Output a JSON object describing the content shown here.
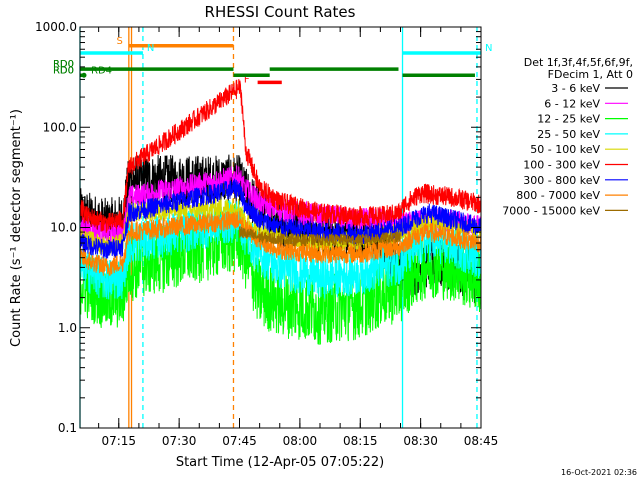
{
  "chart_data": {
    "type": "line",
    "title": "RHESSI Count Rates",
    "xlabel": "Start Time (12-Apr-05 07:05:22)",
    "ylabel": "Count Rate (s⁻¹ detector segment⁻¹)",
    "yscale": "log",
    "ylim": [
      0.1,
      1000
    ],
    "xlim": [
      "07:05:22",
      "08:45:00"
    ],
    "x_ticks": [
      "07:15",
      "07:30",
      "07:45",
      "08:00",
      "08:15",
      "08:30",
      "08:45"
    ],
    "y_ticks": [
      "0.1",
      "1.0",
      "10.0",
      "100.0",
      "1000.0"
    ],
    "timestamp": "16-Oct-2021 02:36",
    "legend": {
      "header": [
        "Det 1f,3f,4f,5f,6f,9f,",
        "FDecim 1, Att 0"
      ],
      "entries": [
        {
          "label": "3 - 6 keV",
          "color": "#000000"
        },
        {
          "label": "6 - 12 keV",
          "color": "#ff00ff"
        },
        {
          "label": "12 - 25 keV",
          "color": "#00ff00"
        },
        {
          "label": "25 - 50 keV",
          "color": "#00ffff"
        },
        {
          "label": "50 - 100 keV",
          "color": "#d8d800"
        },
        {
          "label": "100 - 300 keV",
          "color": "#ff0000"
        },
        {
          "label": "300 - 800 keV",
          "color": "#0000ff"
        },
        {
          "label": "800 - 7000 keV",
          "color": "#ff8000"
        },
        {
          "label": "7000 - 15000 keV",
          "color": "#9c6b00"
        }
      ]
    },
    "flags": [
      {
        "label": "S",
        "color": "#ff8000",
        "y": 650,
        "start": "07:17:30",
        "end": "07:43:30"
      },
      {
        "label": "N",
        "color": "#00ffff",
        "y": 550,
        "start": "07:05:22",
        "end": "07:21:00"
      },
      {
        "label": "N",
        "color": "#00ffff",
        "y": 550,
        "start": "08:25:30",
        "end": "08:45:00"
      },
      {
        "label": "F",
        "color": "#ff0000",
        "y": 280,
        "start": "07:49:30",
        "end": "07:55:30"
      },
      {
        "label": "RD0",
        "color": "#008000",
        "y": 380,
        "start": "07:05:22",
        "end": "07:43:30"
      },
      {
        "label": "RD0",
        "color": "#008000",
        "y": 330,
        "start": "07:43:30",
        "end": "07:52:30"
      },
      {
        "label": "RD0",
        "color": "#008000",
        "y": 380,
        "start": "07:52:30",
        "end": "08:24:30"
      },
      {
        "label": "RD0",
        "color": "#008000",
        "y": 330,
        "start": "08:25:30",
        "end": "08:43:30"
      },
      {
        "label": "RD4",
        "color": "#008000",
        "y": 330,
        "start": "07:05:22",
        "end": "07:06:30"
      }
    ],
    "vlines": [
      {
        "x": "07:05:22",
        "color": "#00ffff",
        "style": "solid"
      },
      {
        "x": "07:17:30",
        "color": "#ff8000",
        "style": "solid"
      },
      {
        "x": "07:18:10",
        "color": "#ff8000",
        "style": "solid"
      },
      {
        "x": "07:21:00",
        "color": "#00ffff",
        "style": "dashed"
      },
      {
        "x": "07:43:30",
        "color": "#ff8000",
        "style": "dashed"
      },
      {
        "x": "08:25:30",
        "color": "#00ffff",
        "style": "solid"
      },
      {
        "x": "08:44:00",
        "color": "#00ffff",
        "style": "dashed"
      }
    ],
    "series": [
      {
        "name": "3 - 6 keV",
        "color": "#000000",
        "noise": 0.25,
        "x": [
          "07:05:22",
          "07:12:00",
          "07:16:00",
          "07:17:30",
          "07:45:00",
          "07:46:00",
          "07:50:00",
          "07:55:00",
          "08:05:00",
          "08:15:00",
          "08:20:00",
          "08:25:00",
          "08:28:00",
          "08:32:00",
          "08:38:00",
          "08:45:00"
        ],
        "y": [
          14,
          11,
          12,
          30,
          30,
          24,
          15,
          11,
          9,
          8,
          7,
          4,
          3.5,
          4.5,
          4,
          3
        ]
      },
      {
        "name": "6 - 12 keV",
        "color": "#ff00ff",
        "noise": 0.12,
        "x": [
          "07:05:22",
          "07:12:00",
          "07:16:00",
          "07:17:30",
          "07:45:00",
          "07:46:00",
          "07:50:00",
          "07:55:00",
          "08:05:00",
          "08:15:00",
          "08:20:00",
          "08:25:00",
          "08:28:00",
          "08:32:00",
          "08:38:00",
          "08:45:00"
        ],
        "y": [
          10,
          8.5,
          9,
          20,
          32,
          25,
          18,
          15,
          13,
          12,
          12,
          11,
          11,
          12,
          11.5,
          10
        ]
      },
      {
        "name": "12 - 25 keV",
        "color": "#00ff00",
        "noise": 0.35,
        "x": [
          "07:05:22",
          "07:12:00",
          "07:16:00",
          "07:17:30",
          "07:45:00",
          "07:46:00",
          "07:48:00",
          "07:50:00",
          "07:55:00",
          "08:05:00",
          "08:15:00",
          "08:20:00",
          "08:25:00",
          "08:28:00",
          "08:32:00",
          "08:38:00",
          "08:45:00"
        ],
        "y": [
          3,
          2,
          2.2,
          4,
          8,
          6,
          3.5,
          2.2,
          1.8,
          1.5,
          1.7,
          2.2,
          2.5,
          3.5,
          4.5,
          4,
          3
        ]
      },
      {
        "name": "25 - 50 keV",
        "color": "#00ffff",
        "noise": 0.22,
        "x": [
          "07:05:22",
          "07:12:00",
          "07:16:00",
          "07:17:30",
          "07:45:00",
          "07:46:00",
          "07:50:00",
          "07:55:00",
          "08:05:00",
          "08:15:00",
          "08:20:00",
          "08:25:00",
          "08:28:00",
          "08:32:00",
          "08:38:00",
          "08:45:00"
        ],
        "y": [
          4,
          3,
          3.2,
          7,
          12,
          9,
          5.5,
          4,
          3.2,
          3.5,
          4,
          4.5,
          6,
          7.5,
          6.5,
          5
        ]
      },
      {
        "name": "50 - 100 keV",
        "color": "#d8d800",
        "noise": 0.1,
        "x": [
          "07:05:22",
          "07:12:00",
          "07:16:00",
          "07:17:30",
          "07:45:00",
          "07:46:00",
          "07:50:00",
          "07:55:00",
          "08:05:00",
          "08:15:00",
          "08:20:00",
          "08:25:00",
          "08:28:00",
          "08:32:00",
          "08:38:00",
          "08:45:00"
        ],
        "y": [
          8,
          6.5,
          7,
          14,
          16,
          12,
          9,
          8,
          7,
          7.5,
          8,
          9,
          10,
          11,
          10,
          9
        ]
      },
      {
        "name": "100 - 300 keV",
        "color": "#ff0000",
        "noise": 0.1,
        "x": [
          "07:05:22",
          "07:07:00",
          "07:12:00",
          "07:16:00",
          "07:17:30",
          "07:45:00",
          "07:45:30",
          "07:46:30",
          "07:50:00",
          "07:55:00",
          "08:05:00",
          "08:15:00",
          "08:20:00",
          "08:25:00",
          "08:26:00",
          "08:30:00",
          "08:38:00",
          "08:45:00"
        ],
        "y": [
          16,
          13,
          11,
          12,
          40,
          250,
          200,
          60,
          25,
          18,
          14,
          13,
          13,
          14,
          17,
          22,
          20,
          17
        ]
      },
      {
        "name": "300 - 800 keV",
        "color": "#0000ff",
        "noise": 0.1,
        "x": [
          "07:05:22",
          "07:12:00",
          "07:16:00",
          "07:17:30",
          "07:45:00",
          "07:46:00",
          "07:50:00",
          "07:55:00",
          "08:05:00",
          "08:15:00",
          "08:20:00",
          "08:25:00",
          "08:28:00",
          "08:32:00",
          "08:38:00",
          "08:45:00"
        ],
        "y": [
          7,
          6,
          6.5,
          14,
          25,
          18,
          12,
          10,
          9,
          8.5,
          9,
          10,
          12,
          14,
          12,
          10
        ]
      },
      {
        "name": "800 - 7000 keV",
        "color": "#ff8000",
        "noise": 0.1,
        "x": [
          "07:05:22",
          "07:12:00",
          "07:16:00",
          "07:17:30",
          "07:45:00",
          "07:46:00",
          "07:50:00",
          "07:55:00",
          "08:05:00",
          "08:15:00",
          "08:20:00",
          "08:25:00",
          "08:28:00",
          "08:32:00",
          "08:38:00",
          "08:45:00"
        ],
        "y": [
          5,
          4,
          4.5,
          9,
          12,
          10,
          7.5,
          6,
          5.5,
          5.5,
          6,
          6.5,
          8,
          9,
          8,
          7
        ]
      },
      {
        "name": "7000 - 15000 keV",
        "color": "#9c6b00",
        "noise": 0.06,
        "x": [
          "07:45:00",
          "07:50:00",
          "08:00:00",
          "08:15:00",
          "08:25:00"
        ],
        "y": [
          9,
          8,
          7.5,
          7.5,
          8
        ]
      }
    ]
  }
}
